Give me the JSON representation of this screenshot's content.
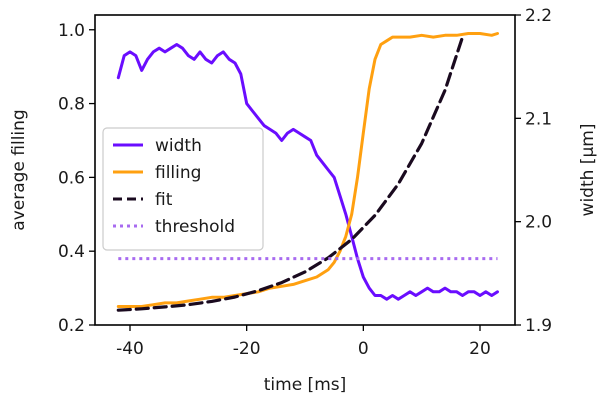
{
  "chart_data": {
    "type": "line",
    "xlabel": "time [ms]",
    "ylabel_left": "average filling",
    "ylabel_right": "width [µm]",
    "xlim": [
      -46,
      26
    ],
    "ylim_left": [
      0.2,
      1.04
    ],
    "ylim_right": [
      1.9,
      2.2
    ],
    "xticks": [
      "-40",
      "-20",
      "0",
      "20"
    ],
    "xtick_values": [
      -40,
      -20,
      0,
      20
    ],
    "yticks_left": [
      "0.2",
      "0.4",
      "0.6",
      "0.8",
      "1.0"
    ],
    "ytick_values_left": [
      0.2,
      0.4,
      0.6,
      0.8,
      1.0
    ],
    "yticks_right": [
      "1.9",
      "2.0",
      "2.1",
      "2.2"
    ],
    "ytick_values_right": [
      1.9,
      2.0,
      2.1,
      2.2
    ],
    "grid": false,
    "legend_position": "center-left",
    "series": [
      {
        "name": "width",
        "axis": "left",
        "color": "#6a0dff",
        "style": "solid",
        "x": [
          -42,
          -41,
          -40,
          -39,
          -38,
          -37,
          -36,
          -35,
          -34,
          -33,
          -32,
          -31,
          -30,
          -29,
          -28,
          -27,
          -26,
          -25,
          -24,
          -23,
          -22,
          -21,
          -20,
          -19,
          -18,
          -17,
          -16,
          -15,
          -14,
          -13,
          -12,
          -11,
          -10,
          -9,
          -8,
          -7,
          -6,
          -5,
          -4,
          -3,
          -2,
          -1,
          0,
          1,
          2,
          3,
          4,
          5,
          6,
          7,
          8,
          9,
          10,
          11,
          12,
          13,
          14,
          15,
          16,
          17,
          18,
          19,
          20,
          21,
          22,
          23
        ],
        "values": [
          0.87,
          0.93,
          0.94,
          0.93,
          0.89,
          0.92,
          0.94,
          0.95,
          0.94,
          0.95,
          0.96,
          0.95,
          0.93,
          0.92,
          0.94,
          0.92,
          0.91,
          0.93,
          0.94,
          0.92,
          0.91,
          0.88,
          0.8,
          0.78,
          0.76,
          0.74,
          0.73,
          0.72,
          0.7,
          0.72,
          0.73,
          0.72,
          0.71,
          0.7,
          0.66,
          0.64,
          0.62,
          0.6,
          0.55,
          0.5,
          0.44,
          0.38,
          0.33,
          0.3,
          0.28,
          0.28,
          0.27,
          0.28,
          0.27,
          0.28,
          0.29,
          0.28,
          0.29,
          0.3,
          0.29,
          0.29,
          0.3,
          0.29,
          0.29,
          0.28,
          0.29,
          0.29,
          0.28,
          0.29,
          0.28,
          0.29
        ]
      },
      {
        "name": "filling",
        "axis": "left",
        "color": "#ffa010",
        "style": "solid",
        "x": [
          -42,
          -40,
          -38,
          -36,
          -34,
          -32,
          -30,
          -28,
          -26,
          -24,
          -22,
          -20,
          -18,
          -16,
          -14,
          -12,
          -10,
          -8,
          -6,
          -5,
          -4,
          -3,
          -2,
          -1,
          0,
          1,
          2,
          3,
          4,
          5,
          6,
          8,
          10,
          12,
          14,
          16,
          18,
          20,
          22,
          23
        ],
        "values": [
          0.25,
          0.25,
          0.25,
          0.255,
          0.26,
          0.26,
          0.265,
          0.27,
          0.275,
          0.275,
          0.28,
          0.285,
          0.29,
          0.3,
          0.305,
          0.31,
          0.32,
          0.33,
          0.35,
          0.37,
          0.4,
          0.44,
          0.5,
          0.6,
          0.72,
          0.84,
          0.92,
          0.96,
          0.97,
          0.98,
          0.98,
          0.98,
          0.985,
          0.98,
          0.985,
          0.985,
          0.99,
          0.99,
          0.985,
          0.99
        ]
      },
      {
        "name": "fit",
        "axis": "left",
        "color": "#1a0a1f",
        "style": "dashed",
        "x": [
          -42,
          -38,
          -34,
          -30,
          -26,
          -22,
          -18,
          -14,
          -10,
          -6,
          -2,
          2,
          6,
          10,
          14,
          17
        ],
        "values": [
          0.24,
          0.244,
          0.249,
          0.255,
          0.264,
          0.276,
          0.293,
          0.315,
          0.344,
          0.382,
          0.432,
          0.497,
          0.582,
          0.692,
          0.836,
          0.98
        ]
      },
      {
        "name": "threshold",
        "axis": "left",
        "color": "#a86bf0",
        "style": "dotted",
        "x": [
          -42,
          23
        ],
        "values": [
          0.38,
          0.38
        ]
      }
    ]
  }
}
